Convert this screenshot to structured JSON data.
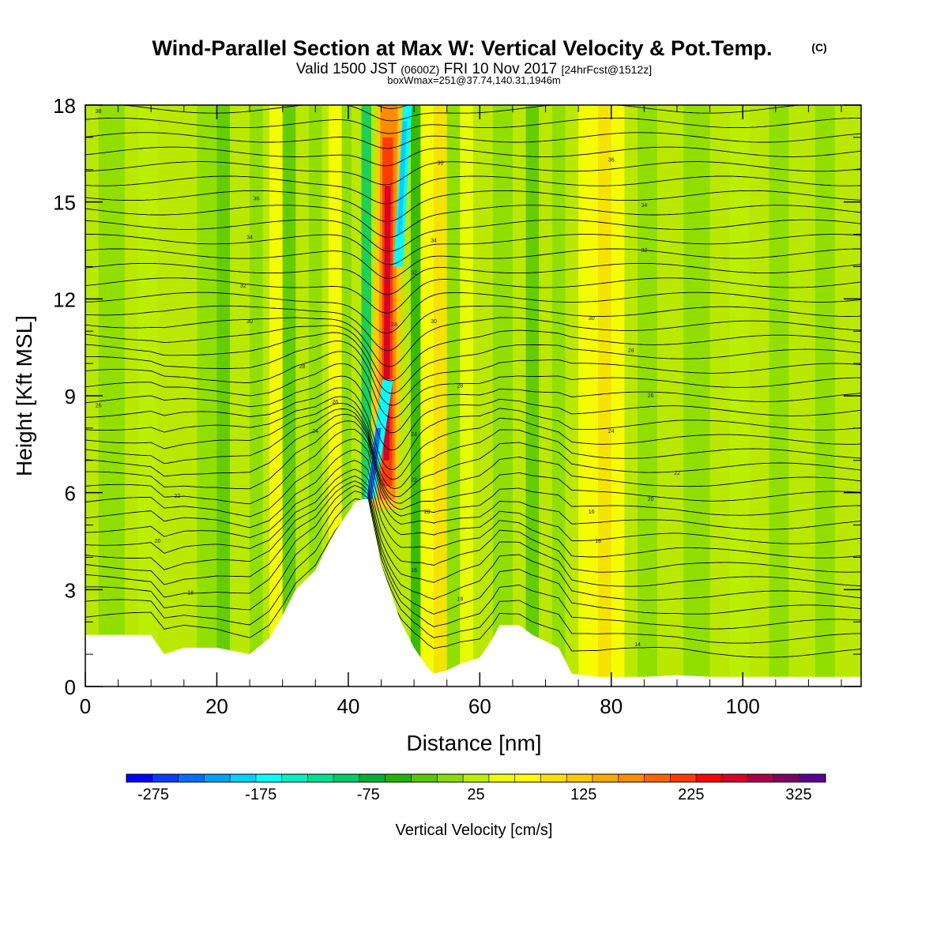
{
  "chart_data": {
    "type": "heatmap",
    "title": "Wind-Parallel Section at Max W: Vertical Velocity & Pot.Temp.",
    "title_mark": "(C)",
    "subtitle_main": "Valid 1500 JST",
    "subtitle_utc": "(0600Z)",
    "subtitle_date": "FRI 10 Nov 2017",
    "subtitle_fcst": "[24hrFcst@1512z]",
    "subtitle_box": "boxWmax=251@37.74,140.31,1946m",
    "xlabel": "Distance [nm]",
    "ylabel": "Height [Kft MSL]",
    "xlim": [
      0,
      118
    ],
    "ylim": [
      0,
      18
    ],
    "x_ticks": [
      0,
      20,
      40,
      60,
      80,
      100
    ],
    "x_tick_labels": [
      "0",
      "20",
      "40",
      "60",
      "80",
      "100"
    ],
    "y_ticks": [
      0,
      3,
      6,
      9,
      12,
      15,
      18
    ],
    "y_tick_labels": [
      "0",
      "3",
      "6",
      "9",
      "12",
      "15",
      "18"
    ],
    "grid": false,
    "colorbar": {
      "title": "Vertical Velocity [cm/s]",
      "placement": "bottom",
      "min": -300,
      "max": 350,
      "step": 25,
      "labels": [
        "-275",
        "-175",
        "-75",
        "25",
        "125",
        "225",
        "325"
      ],
      "label_values": [
        -275,
        -175,
        -75,
        25,
        125,
        225,
        325
      ],
      "colors": [
        "#0000ff",
        "#0a3cff",
        "#0070ff",
        "#00a0ff",
        "#00d0ff",
        "#00ffff",
        "#00f0c0",
        "#00e090",
        "#00cc66",
        "#00b030",
        "#22b400",
        "#55c800",
        "#88dd00",
        "#bbee00",
        "#eeff00",
        "#ffff00",
        "#ffe000",
        "#ffc800",
        "#ffaa00",
        "#ff8c00",
        "#ff6400",
        "#ff3c00",
        "#ff0000",
        "#d8002a",
        "#aa0046",
        "#800064",
        "#5a0090"
      ]
    },
    "terrain_profile_kft": [
      [
        0,
        1.6
      ],
      [
        5,
        1.6
      ],
      [
        10,
        1.6
      ],
      [
        12,
        1.0
      ],
      [
        15,
        1.2
      ],
      [
        20,
        1.2
      ],
      [
        25,
        1.0
      ],
      [
        28,
        1.5
      ],
      [
        30,
        2.2
      ],
      [
        32,
        3.0
      ],
      [
        35,
        3.6
      ],
      [
        38,
        4.8
      ],
      [
        40,
        5.4
      ],
      [
        41,
        5.7
      ],
      [
        42,
        5.8
      ],
      [
        43,
        5.8
      ],
      [
        44,
        4.8
      ],
      [
        45,
        3.8
      ],
      [
        46,
        3.2
      ],
      [
        47,
        2.6
      ],
      [
        48,
        2.0
      ],
      [
        50,
        1.2
      ],
      [
        52,
        0.6
      ],
      [
        53,
        0.4
      ],
      [
        55,
        0.5
      ],
      [
        57,
        0.7
      ],
      [
        60,
        0.9
      ],
      [
        62,
        1.5
      ],
      [
        63,
        1.9
      ],
      [
        66,
        1.9
      ],
      [
        68,
        1.6
      ],
      [
        70,
        1.4
      ],
      [
        72,
        1.2
      ],
      [
        74,
        0.4
      ],
      [
        78,
        0.3
      ],
      [
        85,
        0.3
      ],
      [
        90,
        0.35
      ],
      [
        95,
        0.3
      ],
      [
        100,
        0.3
      ],
      [
        118,
        0.3
      ]
    ],
    "contour_labels": [
      {
        "x": 2,
        "y": 17.8,
        "text": "38"
      },
      {
        "x": 26,
        "y": 15.1,
        "text": "36"
      },
      {
        "x": 25,
        "y": 13.9,
        "text": "34"
      },
      {
        "x": 24,
        "y": 12.4,
        "text": "32"
      },
      {
        "x": 25,
        "y": 11.3,
        "text": "30"
      },
      {
        "x": 33,
        "y": 9.9,
        "text": "28"
      },
      {
        "x": 38,
        "y": 8.8,
        "text": "26"
      },
      {
        "x": 2,
        "y": 8.7,
        "text": "26"
      },
      {
        "x": 35,
        "y": 7.9,
        "text": "24"
      },
      {
        "x": 14,
        "y": 5.9,
        "text": "22"
      },
      {
        "x": 11,
        "y": 4.5,
        "text": "20"
      },
      {
        "x": 16,
        "y": 2.9,
        "text": "18"
      },
      {
        "x": 54,
        "y": 16.2,
        "text": "36"
      },
      {
        "x": 53,
        "y": 13.8,
        "text": "34"
      },
      {
        "x": 50,
        "y": 12.8,
        "text": "32"
      },
      {
        "x": 47,
        "y": 11.2,
        "text": "28"
      },
      {
        "x": 53,
        "y": 11.3,
        "text": "30"
      },
      {
        "x": 57,
        "y": 9.3,
        "text": "28"
      },
      {
        "x": 50,
        "y": 7.8,
        "text": "24"
      },
      {
        "x": 50,
        "y": 6.4,
        "text": "22"
      },
      {
        "x": 52,
        "y": 5.4,
        "text": "20"
      },
      {
        "x": 50,
        "y": 3.6,
        "text": "16"
      },
      {
        "x": 57,
        "y": 2.7,
        "text": "18"
      },
      {
        "x": 80,
        "y": 16.3,
        "text": "36"
      },
      {
        "x": 85,
        "y": 14.9,
        "text": "34"
      },
      {
        "x": 85,
        "y": 13.5,
        "text": "32"
      },
      {
        "x": 77,
        "y": 11.4,
        "text": "30"
      },
      {
        "x": 83,
        "y": 10.4,
        "text": "28"
      },
      {
        "x": 86,
        "y": 9.0,
        "text": "26"
      },
      {
        "x": 80,
        "y": 7.9,
        "text": "24"
      },
      {
        "x": 90,
        "y": 6.6,
        "text": "22"
      },
      {
        "x": 86,
        "y": 5.8,
        "text": "20"
      },
      {
        "x": 77,
        "y": 5.4,
        "text": "16"
      },
      {
        "x": 78,
        "y": 4.5,
        "text": "18"
      },
      {
        "x": 84,
        "y": 1.3,
        "text": "14"
      }
    ]
  }
}
